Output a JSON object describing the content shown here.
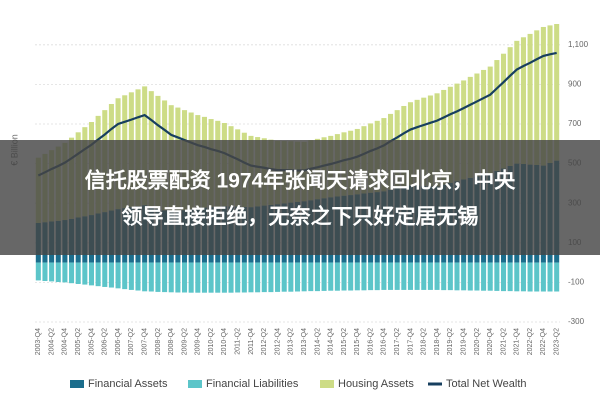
{
  "chart_data": {
    "type": "bar",
    "stacked": true,
    "y_label": "€ Billion",
    "ylim": [
      -300,
      1200
    ],
    "yticks": [
      -300,
      -100,
      100,
      300,
      500,
      700,
      900,
      {
        "value": 1100,
        "label": "1,100"
      }
    ],
    "grid": true,
    "legend": "bottom",
    "categories": [
      "2003-Q4",
      null,
      "2004-Q2",
      null,
      "2004-Q4",
      null,
      "2005-Q2",
      null,
      "2005-Q4",
      null,
      "2006-Q2",
      null,
      "2006-Q4",
      null,
      "2007-Q2",
      null,
      "2007-Q4",
      null,
      "2008-Q2",
      null,
      "2008-Q4",
      null,
      "2009-Q2",
      null,
      "2009-Q4",
      null,
      "2010-Q2",
      null,
      "2010-Q4",
      null,
      "2011-Q2",
      null,
      "2011-Q4",
      null,
      "2012-Q2",
      null,
      "2012-Q4",
      null,
      "2013-Q2",
      null,
      "2013-Q4",
      null,
      "2014-Q2",
      null,
      "2014-Q4",
      null,
      "2015-Q2",
      null,
      "2015-Q4",
      null,
      "2016-Q2",
      null,
      "2016-Q4",
      null,
      "2017-Q2",
      null,
      "2017-Q4",
      null,
      "2018-Q2",
      null,
      "2018-Q4",
      null,
      "2019-Q2",
      null,
      "2019-Q4",
      null,
      "2020-Q2",
      null,
      "2020-Q4",
      null,
      "2021-Q2",
      null,
      "2021-Q4",
      null,
      "2022-Q2",
      null,
      "2022-Q4",
      null,
      "2023-Q2"
    ],
    "series": [
      {
        "name": "Financial Assets",
        "type": "bar",
        "color": "#1b6d8c",
        "values": [
          200,
          204,
          208,
          211,
          215,
          221,
          228,
          234,
          240,
          248,
          255,
          263,
          270,
          275,
          280,
          285,
          290,
          281,
          272,
          264,
          255,
          260,
          265,
          270,
          275,
          278,
          280,
          283,
          285,
          284,
          283,
          281,
          280,
          284,
          288,
          291,
          295,
          299,
          303,
          306,
          310,
          315,
          320,
          325,
          330,
          334,
          338,
          341,
          345,
          349,
          353,
          356,
          360,
          368,
          375,
          383,
          390,
          389,
          388,
          386,
          385,
          394,
          403,
          411,
          420,
          428,
          435,
          443,
          450,
          463,
          475,
          488,
          500,
          498,
          495,
          493,
          490,
          503,
          515
        ]
      },
      {
        "name": "Financial Liabilities",
        "type": "bar",
        "color": "#5cc5c9",
        "values": [
          -90,
          -93,
          -95,
          -98,
          -100,
          -104,
          -108,
          -111,
          -115,
          -119,
          -123,
          -126,
          -130,
          -134,
          -138,
          -141,
          -145,
          -146,
          -148,
          -149,
          -150,
          -151,
          -151,
          -152,
          -152,
          -152,
          -152,
          -152,
          -152,
          -152,
          -151,
          -151,
          -150,
          -150,
          -149,
          -149,
          -148,
          -147,
          -147,
          -146,
          -145,
          -144,
          -144,
          -143,
          -142,
          -142,
          -141,
          -141,
          -140,
          -140,
          -139,
          -139,
          -138,
          -138,
          -138,
          -138,
          -138,
          -138,
          -138,
          -138,
          -138,
          -139,
          -139,
          -140,
          -140,
          -141,
          -141,
          -142,
          -142,
          -143,
          -144,
          -144,
          -145,
          -145,
          -146,
          -146,
          -146,
          -146,
          -146
        ]
      },
      {
        "name": "Housing Assets",
        "type": "bar",
        "color": "#cddc86",
        "values": [
          330,
          345,
          360,
          375,
          390,
          410,
          430,
          450,
          470,
          493,
          515,
          538,
          560,
          570,
          580,
          590,
          600,
          585,
          570,
          555,
          540,
          523,
          505,
          488,
          470,
          458,
          445,
          433,
          420,
          405,
          390,
          375,
          360,
          350,
          340,
          330,
          320,
          315,
          310,
          305,
          300,
          303,
          305,
          308,
          310,
          315,
          320,
          325,
          330,
          340,
          350,
          360,
          370,
          383,
          395,
          408,
          420,
          433,
          445,
          458,
          470,
          478,
          485,
          493,
          500,
          510,
          520,
          530,
          540,
          560,
          580,
          600,
          620,
          640,
          660,
          680,
          700,
          695,
          690
        ]
      },
      {
        "name": "Total Net Wealth",
        "type": "line",
        "color": "#173f5f",
        "values": [
          440,
          456,
          473,
          488,
          505,
          527,
          550,
          573,
          595,
          622,
          647,
          675,
          700,
          711,
          722,
          734,
          745,
          720,
          694,
          670,
          645,
          632,
          619,
          606,
          593,
          584,
          573,
          564,
          553,
          537,
          522,
          505,
          490,
          484,
          479,
          472,
          467,
          467,
          466,
          465,
          465,
          474,
          481,
          490,
          498,
          507,
          517,
          525,
          535,
          549,
          564,
          577,
          592,
          613,
          632,
          653,
          672,
          684,
          695,
          706,
          717,
          733,
          749,
          764,
          780,
          797,
          814,
          831,
          848,
          880,
          911,
          944,
          975,
          993,
          1009,
          1027,
          1044,
          1052,
          1059
        ]
      }
    ],
    "annotations": [
      "信托股票配资 1974年张闻天请求回北京，中央",
      "领导直接拒绝，无奈之下只好定居无锡"
    ]
  }
}
